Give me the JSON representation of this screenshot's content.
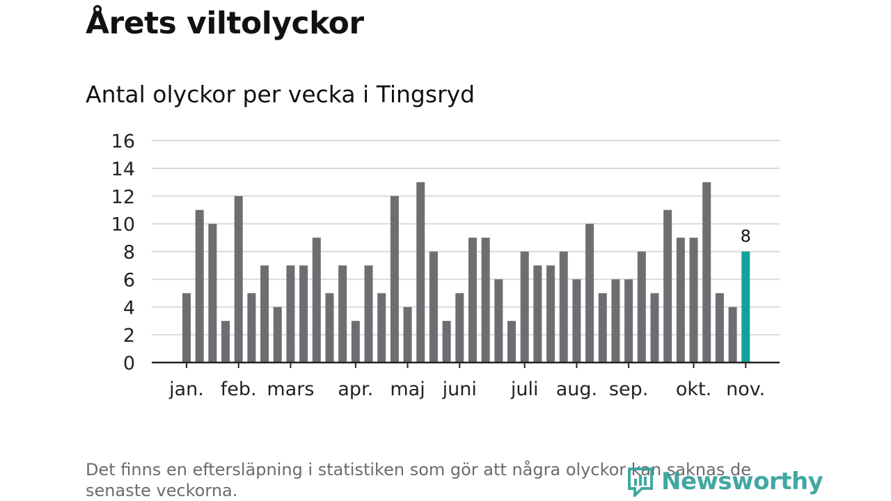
{
  "title": "Årets viltolyckor",
  "subtitle": "Antal olyckor per vecka i Tingsryd",
  "footnote": "Det finns en eftersläpning i statistiken som gör att några olyckor kan saknas de senaste veckorna.",
  "brand": {
    "name": "Newsworthy",
    "color": "#2e9e97",
    "icon": "newsworthy-logo-icon"
  },
  "colors": {
    "bar": "#6e6d72",
    "highlight": "#0fa49a",
    "grid": "#d9d9d9",
    "axis": "#222222"
  },
  "chart_data": {
    "type": "bar",
    "ylim": [
      0,
      16
    ],
    "yticks": [
      0,
      2,
      4,
      6,
      8,
      10,
      12,
      14,
      16
    ],
    "grid": true,
    "values": [
      5,
      11,
      10,
      3,
      12,
      5,
      7,
      4,
      7,
      7,
      9,
      5,
      7,
      3,
      7,
      5,
      12,
      4,
      13,
      8,
      3,
      5,
      9,
      9,
      6,
      3,
      8,
      7,
      7,
      8,
      6,
      10,
      5,
      6,
      6,
      8,
      5,
      11,
      9,
      9,
      13,
      5,
      4,
      8
    ],
    "highlight_index": 43,
    "highlight_label": "8",
    "month_labels": [
      {
        "label": "jan.",
        "week": 1
      },
      {
        "label": "feb.",
        "week": 5
      },
      {
        "label": "mars",
        "week": 9
      },
      {
        "label": "apr.",
        "week": 14
      },
      {
        "label": "maj",
        "week": 18
      },
      {
        "label": "juni",
        "week": 22
      },
      {
        "label": "juli",
        "week": 27
      },
      {
        "label": "aug.",
        "week": 31
      },
      {
        "label": "sep.",
        "week": 35
      },
      {
        "label": "okt.",
        "week": 40
      },
      {
        "label": "nov.",
        "week": 44
      }
    ]
  }
}
